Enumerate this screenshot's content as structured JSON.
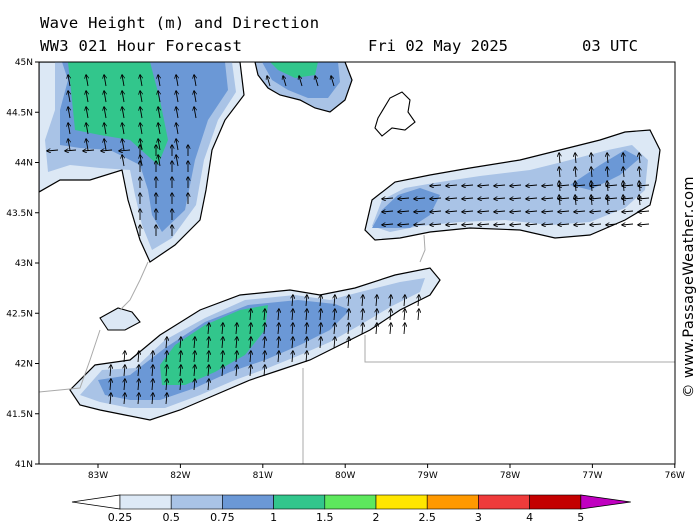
{
  "header": {
    "title_line1": "Wave Height (m) and Direction",
    "title_line2": "WW3 021 Hour Forecast",
    "date": "Fri 02 May 2025",
    "time": "03 UTC"
  },
  "map": {
    "lat_labels": [
      "45N",
      "44.5N",
      "44N",
      "43.5N",
      "43N",
      "42.5N",
      "42N",
      "41.5N",
      "41N"
    ],
    "lon_labels": [
      "83W",
      "82W",
      "81W",
      "80W",
      "79W",
      "78W",
      "77W",
      "76W"
    ],
    "ocean_color": "#ffffff",
    "land_color": "#ffffff",
    "wave_field_note_colors": [
      "#dce8f5",
      "#a9c3e6",
      "#6b98d6",
      "#32c68c"
    ]
  },
  "watermark": "© www.PassageWeather.com",
  "colorbar": {
    "labels": [
      "0.25",
      "0.5",
      "0.75",
      "1",
      "1.5",
      "2",
      "2.5",
      "3",
      "4",
      "5"
    ],
    "colors": [
      "#ffffff",
      "#dde9f6",
      "#a9c3e6",
      "#6b98d6",
      "#32c68c",
      "#5de85d",
      "#ffe600",
      "#ff9900",
      "#ef3b3b",
      "#c40000",
      "#c000c0"
    ]
  }
}
